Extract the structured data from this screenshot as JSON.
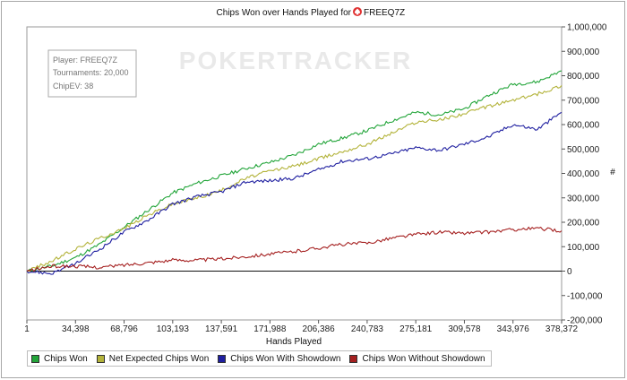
{
  "chart_data": {
    "type": "line",
    "title_prefix": "Chips Won over Hands Played for",
    "player_name": "FREEQ7Z",
    "xlabel": "Hands Played",
    "ylabel": "#",
    "xlim": [
      1,
      378372
    ],
    "ylim": [
      -200000,
      1000000
    ],
    "x_ticks": [
      "1",
      "34,398",
      "68,796",
      "103,193",
      "137,591",
      "171,988",
      "206,386",
      "240,783",
      "275,181",
      "309,578",
      "343,976",
      "378,372"
    ],
    "y_ticks": [
      "1,000,000",
      "900,000",
      "800,000",
      "700,000",
      "600,000",
      "500,000",
      "400,000",
      "300,000",
      "200,000",
      "100,000",
      "0",
      "-100,000",
      "-200,000"
    ],
    "grid": false,
    "legend_position": "bottom",
    "watermark": "POKERTRACKER",
    "info_box": [
      "Player: FREEQ7Z",
      "Tournaments: 20,000",
      "ChipEV: 38"
    ],
    "x": [
      1,
      17199,
      34398,
      51597,
      68796,
      85995,
      103193,
      120392,
      137591,
      154790,
      171988,
      189187,
      206386,
      223585,
      240783,
      257982,
      275181,
      292380,
      309578,
      326777,
      343976,
      361174,
      378372
    ],
    "series": [
      {
        "name": "Chips Won",
        "color": "#23a53a",
        "values": [
          0,
          20000,
          55000,
          110000,
          180000,
          250000,
          320000,
          360000,
          390000,
          420000,
          445000,
          475000,
          520000,
          545000,
          575000,
          615000,
          650000,
          640000,
          665000,
          720000,
          765000,
          775000,
          820000
        ]
      },
      {
        "name": "Net Expected Chips Won",
        "color": "#b3b33a",
        "values": [
          0,
          40000,
          90000,
          135000,
          175000,
          230000,
          275000,
          300000,
          330000,
          380000,
          410000,
          430000,
          460000,
          490000,
          520000,
          565000,
          610000,
          620000,
          645000,
          675000,
          700000,
          725000,
          760000
        ]
      },
      {
        "name": "Chips Won With Showdown",
        "color": "#1f1fa0",
        "values": [
          0,
          -10000,
          30000,
          90000,
          160000,
          210000,
          275000,
          305000,
          325000,
          365000,
          370000,
          380000,
          415000,
          450000,
          460000,
          480000,
          505000,
          495000,
          520000,
          550000,
          600000,
          580000,
          650000
        ]
      },
      {
        "name": "Chips Won Without Showdown",
        "color": "#a52020",
        "values": [
          0,
          20000,
          20000,
          15000,
          25000,
          35000,
          45000,
          45000,
          50000,
          60000,
          70000,
          80000,
          95000,
          110000,
          115000,
          135000,
          150000,
          160000,
          155000,
          160000,
          170000,
          175000,
          165000
        ]
      }
    ]
  }
}
